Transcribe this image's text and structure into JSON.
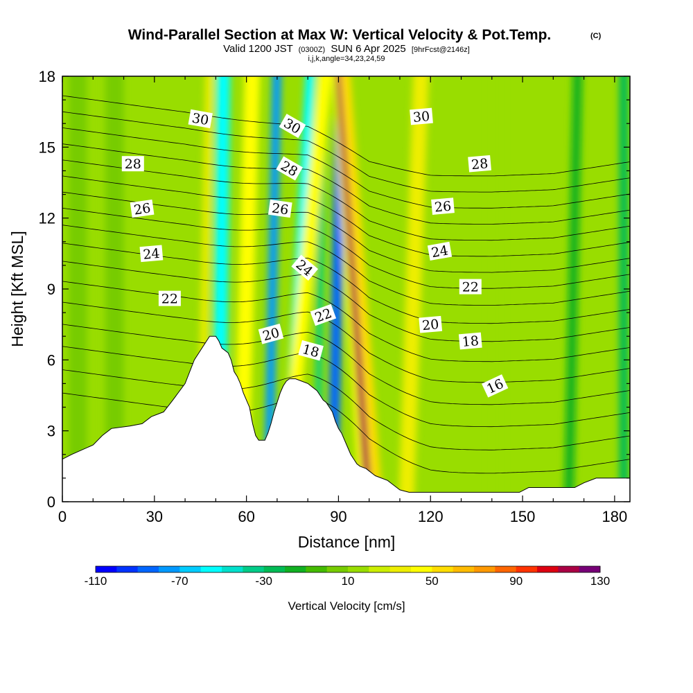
{
  "chart_data": {
    "type": "heatmap",
    "title": "Wind-Parallel Section at Max W: Vertical Velocity & Pot.Temp.",
    "title_mark": "(C)",
    "subtitle_parts": {
      "valid": "Valid 1200 JST",
      "utc": "(0300Z)",
      "date": "SUN 6 Apr 2025",
      "forecast": "[9hrFcst@2146z]"
    },
    "indices": "i,j,k,angle=34,23,24,59",
    "xlabel": "Distance [nm]",
    "ylabel": "Height [Kft MSL]",
    "xlim": [
      0,
      185
    ],
    "ylim": [
      0,
      18
    ],
    "x_ticks": [
      "0",
      "30",
      "60",
      "90",
      "120",
      "150",
      "180"
    ],
    "y_ticks": [
      "0",
      "3",
      "6",
      "9",
      "12",
      "15",
      "18"
    ],
    "colorbar": {
      "label": "Vertical Velocity [cm/s]",
      "range": [
        -110,
        130
      ],
      "step": 10,
      "tick_labels": [
        "-110",
        "-70",
        "-30",
        "10",
        "50",
        "90",
        "130"
      ],
      "colors": [
        "#0000ff",
        "#0033ff",
        "#0066ff",
        "#0099ff",
        "#00ccff",
        "#00ffff",
        "#00e0cc",
        "#00cc88",
        "#00bb55",
        "#11b022",
        "#44bb00",
        "#77cc00",
        "#99dd00",
        "#ccee00",
        "#eeee00",
        "#ffff00",
        "#ffdd00",
        "#ffbb00",
        "#ff9900",
        "#ff6600",
        "#ff3300",
        "#dd0011",
        "#aa0044",
        "#770077"
      ]
    },
    "velocity_bands": [
      {
        "x_base": 5,
        "x_top": 5,
        "width": 6,
        "w": 2
      },
      {
        "x_base": 17,
        "x_top": 17,
        "width": 6,
        "w": 4
      },
      {
        "x_base": 45,
        "x_top": 48,
        "width": 2.5,
        "w": 30
      },
      {
        "x_base": 51,
        "x_top": 52.5,
        "width": 4.5,
        "w": -55
      },
      {
        "x_base": 58,
        "x_top": 62,
        "width": 5,
        "w": 40
      },
      {
        "x_base": 67,
        "x_top": 70,
        "width": 3,
        "w": -75
      },
      {
        "x_base": 73,
        "x_top": 81,
        "width": 3.2,
        "w": -60
      },
      {
        "x_base": 83,
        "x_top": 85,
        "width": 2,
        "w": -35
      },
      {
        "x_base": 72,
        "x_top": 86,
        "width": 4.5,
        "w": 40
      },
      {
        "x_base": 88,
        "x_top": 91,
        "width": 3.5,
        "w": -90
      },
      {
        "x_base": 98,
        "x_top": 89,
        "width": 2.2,
        "w": 40
      },
      {
        "x_base": 100,
        "x_top": 90,
        "width": 2.4,
        "w": 115
      },
      {
        "x_base": 103,
        "x_top": 92,
        "width": 3.2,
        "w": 55
      },
      {
        "x_base": 112,
        "x_top": 117,
        "width": 5,
        "w": 30
      },
      {
        "x_base": 140,
        "x_top": 140,
        "width": 7,
        "w": 15
      },
      {
        "x_base": 165,
        "x_top": 168,
        "width": 3,
        "w": -20
      },
      {
        "x_base": 183,
        "x_top": 183,
        "width": 3,
        "w": -25
      }
    ],
    "terrain": {
      "x": [
        0,
        3,
        10,
        13,
        16,
        22,
        26,
        29,
        33,
        36,
        40,
        43,
        47,
        48,
        50,
        51,
        52,
        54,
        55,
        56,
        57,
        58,
        59,
        60,
        61,
        62,
        63,
        64,
        66,
        67,
        68,
        69,
        70,
        71,
        72,
        73,
        74,
        75,
        76,
        78,
        80,
        82,
        83,
        84,
        85,
        86,
        87,
        88,
        89,
        90,
        91,
        92,
        93,
        94,
        95,
        96,
        97,
        99,
        100,
        101,
        102,
        104,
        106,
        108,
        110,
        113,
        117,
        120,
        123,
        126,
        129,
        131,
        134,
        137,
        140,
        143,
        146,
        149,
        152,
        155,
        158,
        161,
        164,
        167,
        170,
        174,
        177,
        181,
        185
      ],
      "y": [
        1.8,
        2.0,
        2.4,
        2.8,
        3.1,
        3.2,
        3.3,
        3.6,
        3.8,
        4.3,
        5.0,
        6.0,
        6.8,
        7.0,
        7.0,
        6.8,
        6.5,
        6.3,
        6.0,
        5.5,
        5.3,
        5.0,
        4.6,
        4.3,
        4.0,
        3.3,
        2.8,
        2.6,
        2.6,
        2.9,
        3.3,
        3.8,
        4.2,
        4.6,
        4.9,
        5.1,
        5.2,
        5.2,
        5.2,
        5.1,
        5.0,
        4.8,
        4.7,
        4.5,
        4.3,
        4.2,
        4.0,
        3.8,
        3.4,
        3.1,
        2.9,
        2.6,
        2.3,
        2.0,
        1.8,
        1.6,
        1.5,
        1.4,
        1.3,
        1.2,
        1.1,
        1.0,
        0.9,
        0.7,
        0.5,
        0.4,
        0.4,
        0.4,
        0.4,
        0.4,
        0.4,
        0.4,
        0.4,
        0.4,
        0.4,
        0.4,
        0.4,
        0.4,
        0.6,
        0.6,
        0.6,
        0.6,
        0.6,
        0.6,
        0.8,
        1.0,
        1.0,
        1.0,
        1.0
      ]
    },
    "contours": {
      "levels": [
        15,
        16,
        17,
        18,
        19,
        20,
        21,
        22,
        23,
        24,
        25,
        26,
        27,
        28,
        29,
        30,
        31
      ],
      "ridge_center_x": 86,
      "ridge_width": 22,
      "slope_kft_per_k": [
        0.58,
        0.58,
        0.55,
        0.55,
        0.52,
        0.5,
        0.45,
        0.45,
        0.42,
        0.4,
        0.4
      ],
      "profile_x": [
        0,
        40,
        80,
        100,
        120,
        140,
        160,
        185
      ],
      "profile_base": [
        4.6,
        3.9,
        3.0,
        1.6,
        1.2,
        1.2,
        1.3,
        1.8
      ]
    },
    "contour_labels": [
      {
        "text": "30",
        "x": 45,
        "y": 16.2,
        "rot": 10
      },
      {
        "text": "28",
        "x": 23,
        "y": 14.3,
        "rot": 0
      },
      {
        "text": "26",
        "x": 26,
        "y": 12.4,
        "rot": -8
      },
      {
        "text": "24",
        "x": 29,
        "y": 10.5,
        "rot": -5
      },
      {
        "text": "22",
        "x": 35,
        "y": 8.6,
        "rot": 0
      },
      {
        "text": "30",
        "x": 75,
        "y": 15.9,
        "rot": 30
      },
      {
        "text": "28",
        "x": 74,
        "y": 14.1,
        "rot": 30
      },
      {
        "text": "26",
        "x": 71,
        "y": 12.4,
        "rot": 8
      },
      {
        "text": "24",
        "x": 79,
        "y": 9.9,
        "rot": 40
      },
      {
        "text": "22",
        "x": 85,
        "y": 7.9,
        "rot": -20
      },
      {
        "text": "20",
        "x": 68,
        "y": 7.1,
        "rot": -15
      },
      {
        "text": "18",
        "x": 81,
        "y": 6.4,
        "rot": 15
      },
      {
        "text": "30",
        "x": 117,
        "y": 16.3,
        "rot": -5
      },
      {
        "text": "28",
        "x": 136,
        "y": 14.3,
        "rot": -5
      },
      {
        "text": "26",
        "x": 124,
        "y": 12.5,
        "rot": -5
      },
      {
        "text": "24",
        "x": 123,
        "y": 10.6,
        "rot": -10
      },
      {
        "text": "22",
        "x": 133,
        "y": 9.1,
        "rot": 0
      },
      {
        "text": "20",
        "x": 120,
        "y": 7.5,
        "rot": -5
      },
      {
        "text": "18",
        "x": 133,
        "y": 6.8,
        "rot": -5
      },
      {
        "text": "16",
        "x": 141,
        "y": 4.9,
        "rot": -25
      }
    ]
  }
}
